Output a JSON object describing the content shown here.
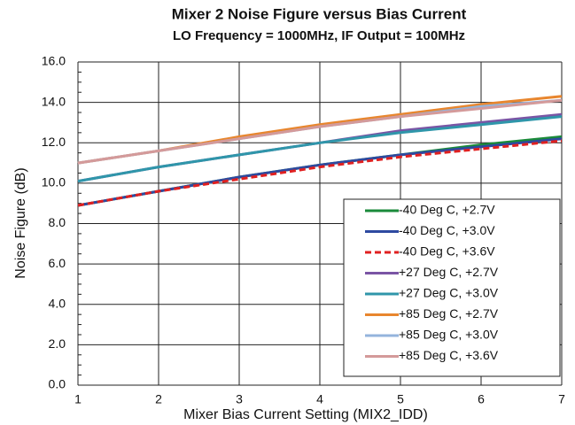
{
  "chart_data": {
    "type": "line",
    "title": "Mixer 2 Noise Figure versus Bias Current",
    "subtitle": "LO Frequency = 1000MHz, IF Output = 100MHz",
    "x_label": "Mixer Bias Current Setting (MIX2_IDD)",
    "y_label": "Noise Figure (dB)",
    "x": [
      1,
      2,
      3,
      4,
      5,
      6,
      7
    ],
    "xlim": [
      1,
      7
    ],
    "xticks": [
      1,
      2,
      3,
      4,
      5,
      6,
      7
    ],
    "ylim": [
      0,
      16
    ],
    "yticks": [
      {
        "value": 0,
        "label": "0.0"
      },
      {
        "value": 2,
        "label": "2.0"
      },
      {
        "value": 4,
        "label": "4.0"
      },
      {
        "value": 6,
        "label": "6.0"
      },
      {
        "value": 8,
        "label": "8.0"
      },
      {
        "value": 10,
        "label": "10.0"
      },
      {
        "value": 12,
        "label": "12.0"
      },
      {
        "value": 14,
        "label": "14.0"
      },
      {
        "value": 16,
        "label": "16.0"
      }
    ],
    "grid": true,
    "legend": "lower right",
    "series": [
      {
        "name": "-40 Deg C, +2.7V",
        "color": "#1a8a3a",
        "values": [
          8.9,
          9.6,
          10.3,
          10.9,
          11.4,
          11.9,
          12.3
        ]
      },
      {
        "name": "-40 Deg C, +3.0V",
        "color": "#2e4aa0",
        "values": [
          8.9,
          9.6,
          10.3,
          10.9,
          11.4,
          11.8,
          12.2
        ]
      },
      {
        "name": "-40 Deg C, +3.6V",
        "color": "#e02020",
        "dashed": true,
        "values": [
          8.9,
          9.6,
          10.2,
          10.8,
          11.3,
          11.7,
          12.1
        ]
      },
      {
        "name": "+27 Deg C, +2.7V",
        "color": "#7a55a5",
        "values": [
          10.1,
          10.8,
          11.4,
          12.0,
          12.6,
          13.0,
          13.4
        ]
      },
      {
        "name": "+27 Deg C, +3.0V",
        "color": "#2f96aa",
        "values": [
          10.1,
          10.8,
          11.4,
          12.0,
          12.5,
          12.9,
          13.3
        ]
      },
      {
        "name": "+85 Deg C, +2.7V",
        "color": "#e8862e",
        "values": [
          11.0,
          11.6,
          12.3,
          12.9,
          13.4,
          13.9,
          14.3
        ]
      },
      {
        "name": "+85 Deg C, +3.0V",
        "color": "#94b4dc",
        "values": [
          11.0,
          11.6,
          12.2,
          12.8,
          13.3,
          13.8,
          14.1
        ]
      },
      {
        "name": "+85 Deg C, +3.6V",
        "color": "#d49a9a",
        "values": [
          11.0,
          11.6,
          12.2,
          12.8,
          13.3,
          13.7,
          14.1
        ]
      }
    ]
  }
}
